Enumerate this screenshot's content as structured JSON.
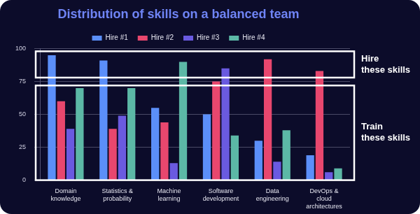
{
  "chart_data": {
    "type": "bar",
    "title": "Distribution of skills on a balanced team",
    "categories": [
      "Domain knowledge",
      "Statistics & probability",
      "Machine learning",
      "Software development",
      "Data engineering",
      "DevOps & cloud architectures"
    ],
    "series": [
      {
        "name": "Hire #1",
        "color": "#5b8ff9",
        "values": [
          95,
          91,
          55,
          50,
          30,
          19
        ]
      },
      {
        "name": "Hire #2",
        "color": "#e8476e",
        "values": [
          60,
          39,
          44,
          75,
          92,
          83
        ]
      },
      {
        "name": "Hire #3",
        "color": "#6a5ae0",
        "values": [
          39,
          49,
          13,
          85,
          14,
          6
        ]
      },
      {
        "name": "Hire #4",
        "color": "#5cb8a6",
        "values": [
          70,
          70,
          90,
          34,
          38,
          9
        ]
      }
    ],
    "ylim": [
      0,
      100
    ],
    "yticks": [
      0,
      25,
      50,
      75,
      100
    ],
    "grid": true,
    "legend": "top",
    "annotations": [
      {
        "text": "Hire these skills",
        "y_range": [
          78,
          98
        ]
      },
      {
        "text": "Train these skills",
        "y_range": [
          0,
          72
        ]
      }
    ]
  }
}
